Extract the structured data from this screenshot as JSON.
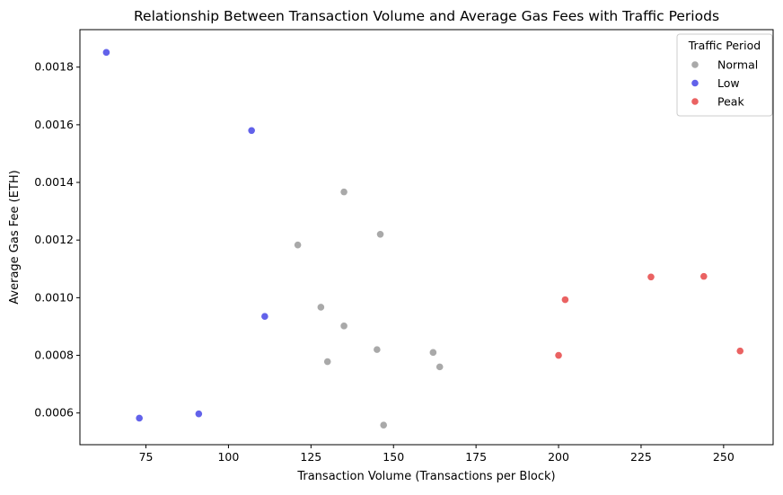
{
  "chart_data": {
    "type": "scatter",
    "title": "Relationship Between Transaction Volume and Average Gas Fees with Traffic Periods",
    "xlabel": "Transaction Volume (Transactions per Block)",
    "ylabel": "Average Gas Fee (ETH)",
    "xlim": [
      55,
      265
    ],
    "ylim": [
      0.00049,
      0.00193
    ],
    "xticks": [
      75,
      100,
      125,
      150,
      175,
      200,
      225,
      250
    ],
    "xtick_labels": [
      "75",
      "100",
      "125",
      "150",
      "175",
      "200",
      "225",
      "250"
    ],
    "yticks": [
      0.0006,
      0.0008,
      0.001,
      0.0012,
      0.0014,
      0.0016,
      0.0018
    ],
    "ytick_labels": [
      "0.0006",
      "0.0008",
      "0.0010",
      "0.0012",
      "0.0014",
      "0.0016",
      "0.0018"
    ],
    "grid": false,
    "legend": {
      "title": "Traffic Period",
      "placement": "top-right"
    },
    "series": [
      {
        "name": "Normal",
        "color": "#a9a9a9",
        "points": [
          {
            "x": 135,
            "y": 0.001367
          },
          {
            "x": 146,
            "y": 0.00122
          },
          {
            "x": 121,
            "y": 0.001183
          },
          {
            "x": 128,
            "y": 0.000967
          },
          {
            "x": 135,
            "y": 0.000902
          },
          {
            "x": 145,
            "y": 0.00082
          },
          {
            "x": 162,
            "y": 0.00081
          },
          {
            "x": 130,
            "y": 0.000778
          },
          {
            "x": 164,
            "y": 0.00076
          },
          {
            "x": 147,
            "y": 0.000558
          }
        ]
      },
      {
        "name": "Low",
        "color": "#6262ea",
        "points": [
          {
            "x": 63,
            "y": 0.001851
          },
          {
            "x": 107,
            "y": 0.00158
          },
          {
            "x": 111,
            "y": 0.000935
          },
          {
            "x": 91,
            "y": 0.000597
          },
          {
            "x": 73,
            "y": 0.000582
          }
        ]
      },
      {
        "name": "Peak",
        "color": "#ea6262",
        "points": [
          {
            "x": 228,
            "y": 0.001072
          },
          {
            "x": 244,
            "y": 0.001074
          },
          {
            "x": 202,
            "y": 0.000993
          },
          {
            "x": 200,
            "y": 0.0008
          },
          {
            "x": 255,
            "y": 0.000815
          }
        ]
      }
    ]
  }
}
